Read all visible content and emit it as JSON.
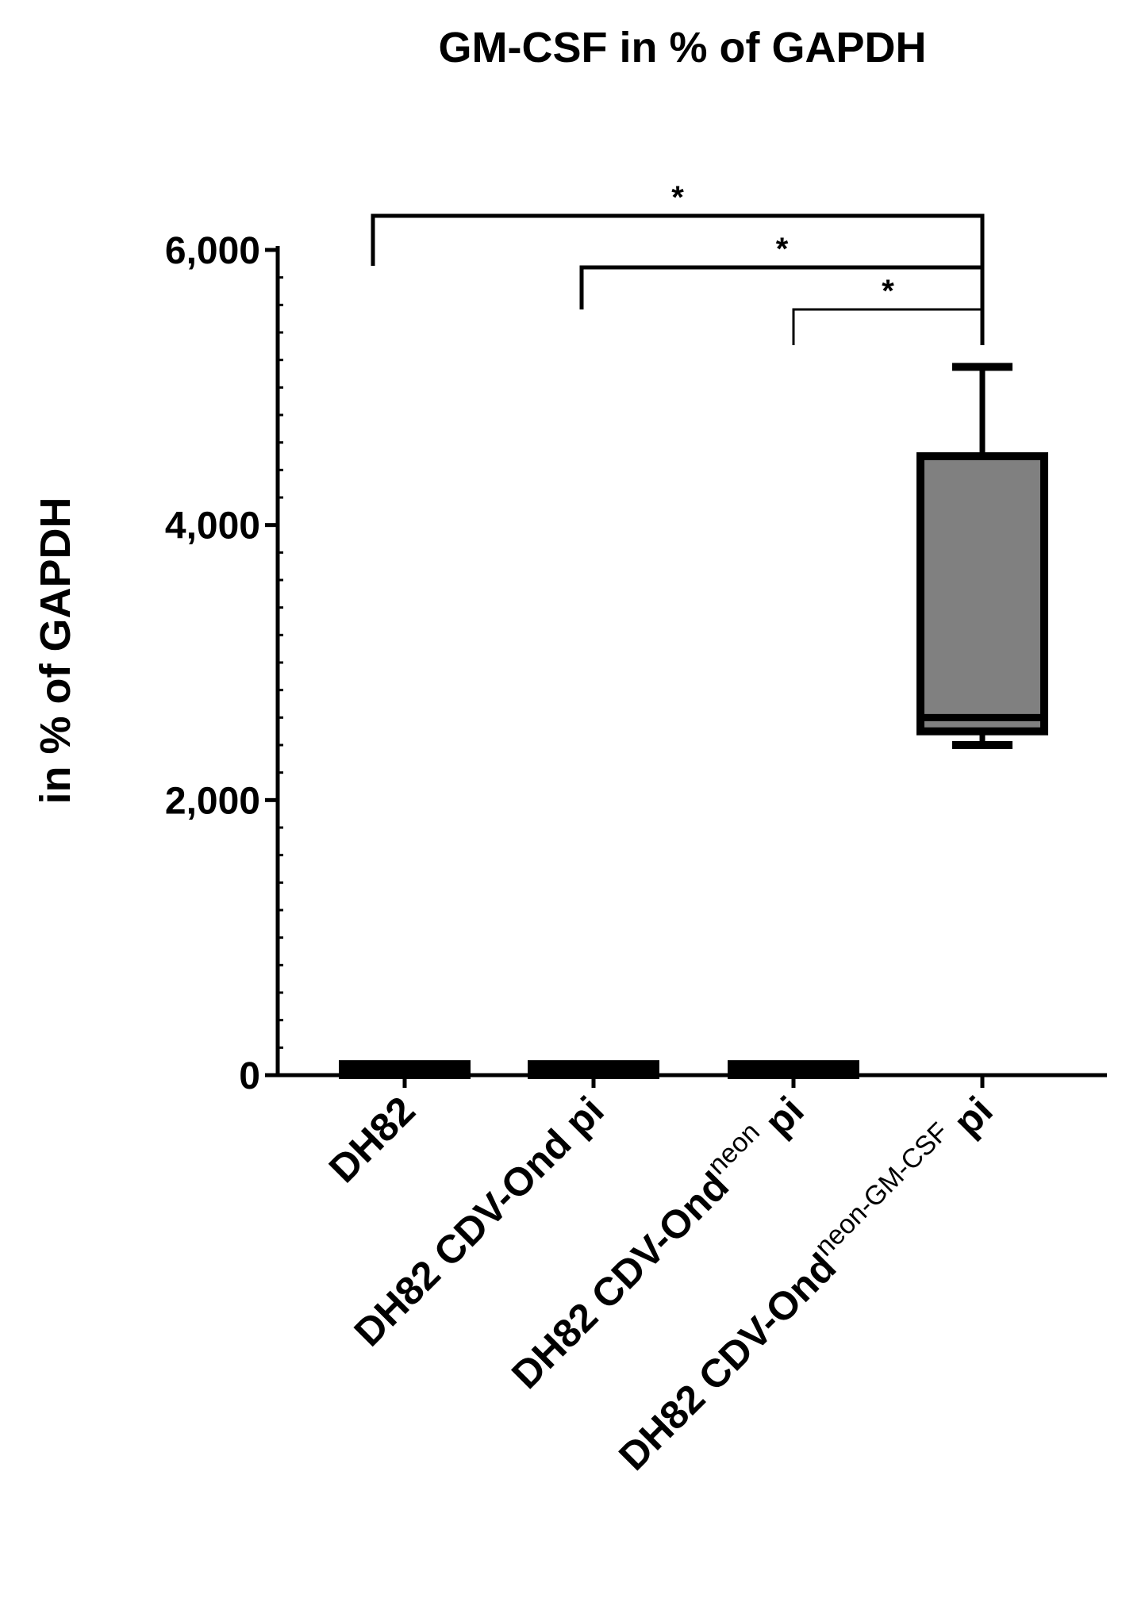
{
  "chart_data": {
    "type": "box",
    "title": "GM-CSF in % of GAPDH",
    "ylabel": "in % of GAPDH",
    "xlabel": "",
    "ylim": [
      0,
      6000
    ],
    "yticks": [
      0,
      2000,
      4000,
      6000
    ],
    "ytick_labels": [
      "0",
      "2,000",
      "4,000",
      "6,000"
    ],
    "minor_tick_step": 200,
    "categories": [
      {
        "base": "DH82",
        "sup": "",
        "suffix": ""
      },
      {
        "base": "DH82 CDV-Ond pi",
        "sup": "",
        "suffix": ""
      },
      {
        "base": "DH82 CDV-Ond",
        "sup": "neon",
        "suffix": "pi"
      },
      {
        "base": "DH82 CDV-Ond",
        "sup": "neon-GM-CSF",
        "suffix": "pi"
      }
    ],
    "boxes": [
      {
        "min": 0,
        "q1": 0,
        "median": 40,
        "q3": 80,
        "max": 80
      },
      {
        "min": 0,
        "q1": 0,
        "median": 40,
        "q3": 80,
        "max": 80
      },
      {
        "min": 0,
        "q1": 0,
        "median": 40,
        "q3": 80,
        "max": 80
      },
      {
        "min": 2400,
        "q1": 2500,
        "median": 2600,
        "q3": 4500,
        "max": 5150
      }
    ],
    "box_color": "#808080",
    "significance": [
      {
        "from": 0,
        "to": 3,
        "label": "*"
      },
      {
        "from": 1,
        "to": 3,
        "label": "*"
      },
      {
        "from": 2,
        "to": 3,
        "label": "*"
      }
    ]
  }
}
